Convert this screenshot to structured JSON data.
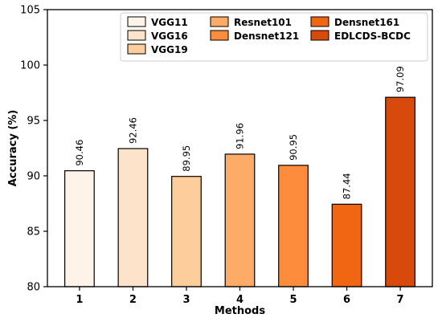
{
  "chart_data": {
    "type": "bar",
    "categories": [
      "1",
      "2",
      "3",
      "4",
      "5",
      "6",
      "7"
    ],
    "values": [
      90.46,
      92.46,
      89.95,
      91.96,
      90.95,
      87.44,
      97.09
    ],
    "data_labels": [
      "90.46",
      "92.46",
      "89.95",
      "91.96",
      "90.95",
      "87.44",
      "97.09"
    ],
    "series_names": [
      "VGG11",
      "VGG16",
      "VGG19",
      "Resnet101",
      "Densnet121",
      "Densnet161",
      "EDLCDS-BCDC"
    ],
    "colors": [
      "#fef3e8",
      "#fde3c9",
      "#fdcd9b",
      "#fdab67",
      "#fd8d3c",
      "#f06613",
      "#d84a0b"
    ],
    "xlabel": "Methods",
    "ylabel": "Accuracy (%)",
    "ylim": [
      80,
      105
    ],
    "yticks": [
      "80",
      "85",
      "90",
      "95",
      "100",
      "105"
    ],
    "grid": false,
    "legend_position": "top-right"
  }
}
